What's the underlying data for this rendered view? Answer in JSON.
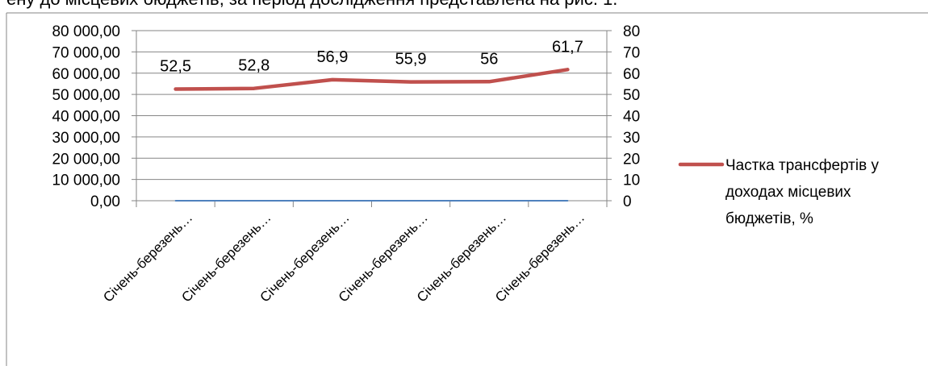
{
  "header_text": "ену до місцевих бюджетів, за період дослідження представлена на рис. 1.",
  "colors": {
    "transfer_share": "#C0504D",
    "left_axis_series": "#4F81BD",
    "grid": "#868686",
    "frame": "#868686"
  },
  "chart_data": {
    "type": "line",
    "title": "",
    "xlabel": "",
    "ylabel": "",
    "categories": [
      "Січень-березень…",
      "Січень-березень…",
      "Січень-березень…",
      "Січень-березень…",
      "Січень-березень…",
      "Січень-березень…"
    ],
    "y_left": {
      "range": [
        0,
        80000
      ],
      "ticks": [
        0,
        10000,
        20000,
        30000,
        40000,
        50000,
        60000,
        70000,
        80000
      ],
      "tick_labels": [
        "0,00",
        "10 000,00",
        "20 000,00",
        "30 000,00",
        "40 000,00",
        "50 000,00",
        "60 000,00",
        "70 000,00",
        "80 000,00"
      ]
    },
    "y_right": {
      "range": [
        0,
        80
      ],
      "ticks": [
        0,
        10,
        20,
        30,
        40,
        50,
        60,
        70,
        80
      ],
      "tick_labels": [
        "0",
        "10",
        "20",
        "30",
        "40",
        "50",
        "60",
        "70",
        "80"
      ]
    },
    "series": [
      {
        "axis": "left",
        "values": [
          0,
          0,
          0,
          0,
          0,
          0
        ],
        "color": "#4F81BD"
      },
      {
        "name": "Частка трансфертів у доходах місцевих бюджетів, %",
        "axis": "right",
        "values": [
          52.5,
          52.8,
          56.9,
          55.9,
          56,
          61.7
        ],
        "data_labels": [
          "52,5",
          "52,8",
          "56,9",
          "55,9",
          "56",
          "61,7"
        ],
        "color": "#C0504D"
      }
    ],
    "grid": true,
    "legend": {
      "position": "right",
      "lines": [
        "Частка трансфертів у",
        "доходах місцевих",
        "бюджетів, %"
      ]
    }
  }
}
